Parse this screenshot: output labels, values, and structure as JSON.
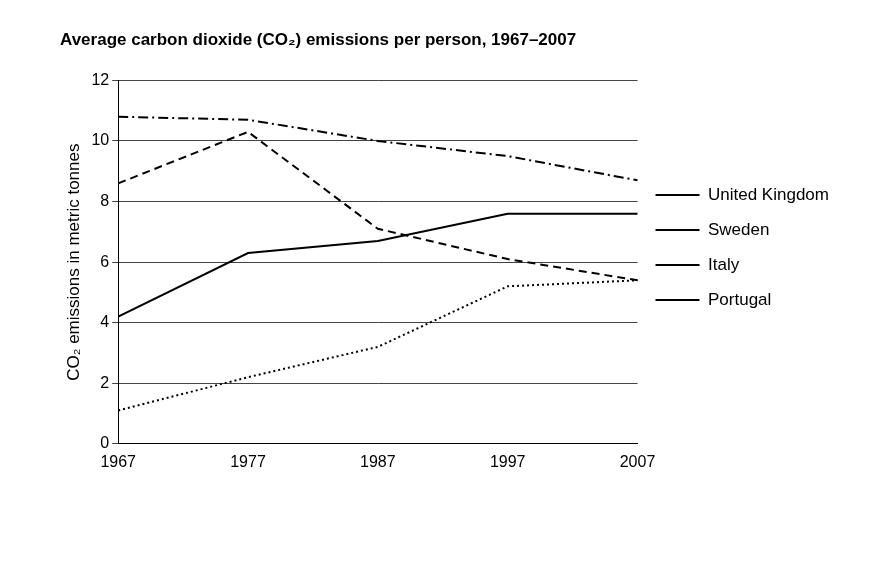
{
  "chart_data": {
    "type": "line",
    "title": "Average carbon dioxide (CO₂) emissions per person, 1967–2007",
    "y_label": "CO₂ emissions in metric tonnes",
    "categories": [
      "1967",
      "1977",
      "1987",
      "1997",
      "2007"
    ],
    "series": [
      {
        "name": "United Kingdom",
        "color": "#000000",
        "line_style": "dashdot",
        "values": [
          10.8,
          10.7,
          10.0,
          9.5,
          8.7
        ]
      },
      {
        "name": "Sweden",
        "color": "#000000",
        "line_style": "dashed",
        "values": [
          8.6,
          10.3,
          7.1,
          6.1,
          5.4
        ]
      },
      {
        "name": "Italy",
        "color": "#000000",
        "line_style": "solid",
        "values": [
          4.2,
          6.3,
          6.7,
          7.6,
          7.6
        ]
      },
      {
        "name": "Portugal",
        "color": "#000000",
        "line_style": "dotted",
        "values": [
          1.1,
          2.2,
          3.2,
          5.2,
          5.4
        ]
      }
    ],
    "ylim": [
      0,
      12
    ],
    "yticks": [
      0,
      2,
      4,
      6,
      8,
      10,
      12
    ],
    "grid": true,
    "legend": "right"
  }
}
